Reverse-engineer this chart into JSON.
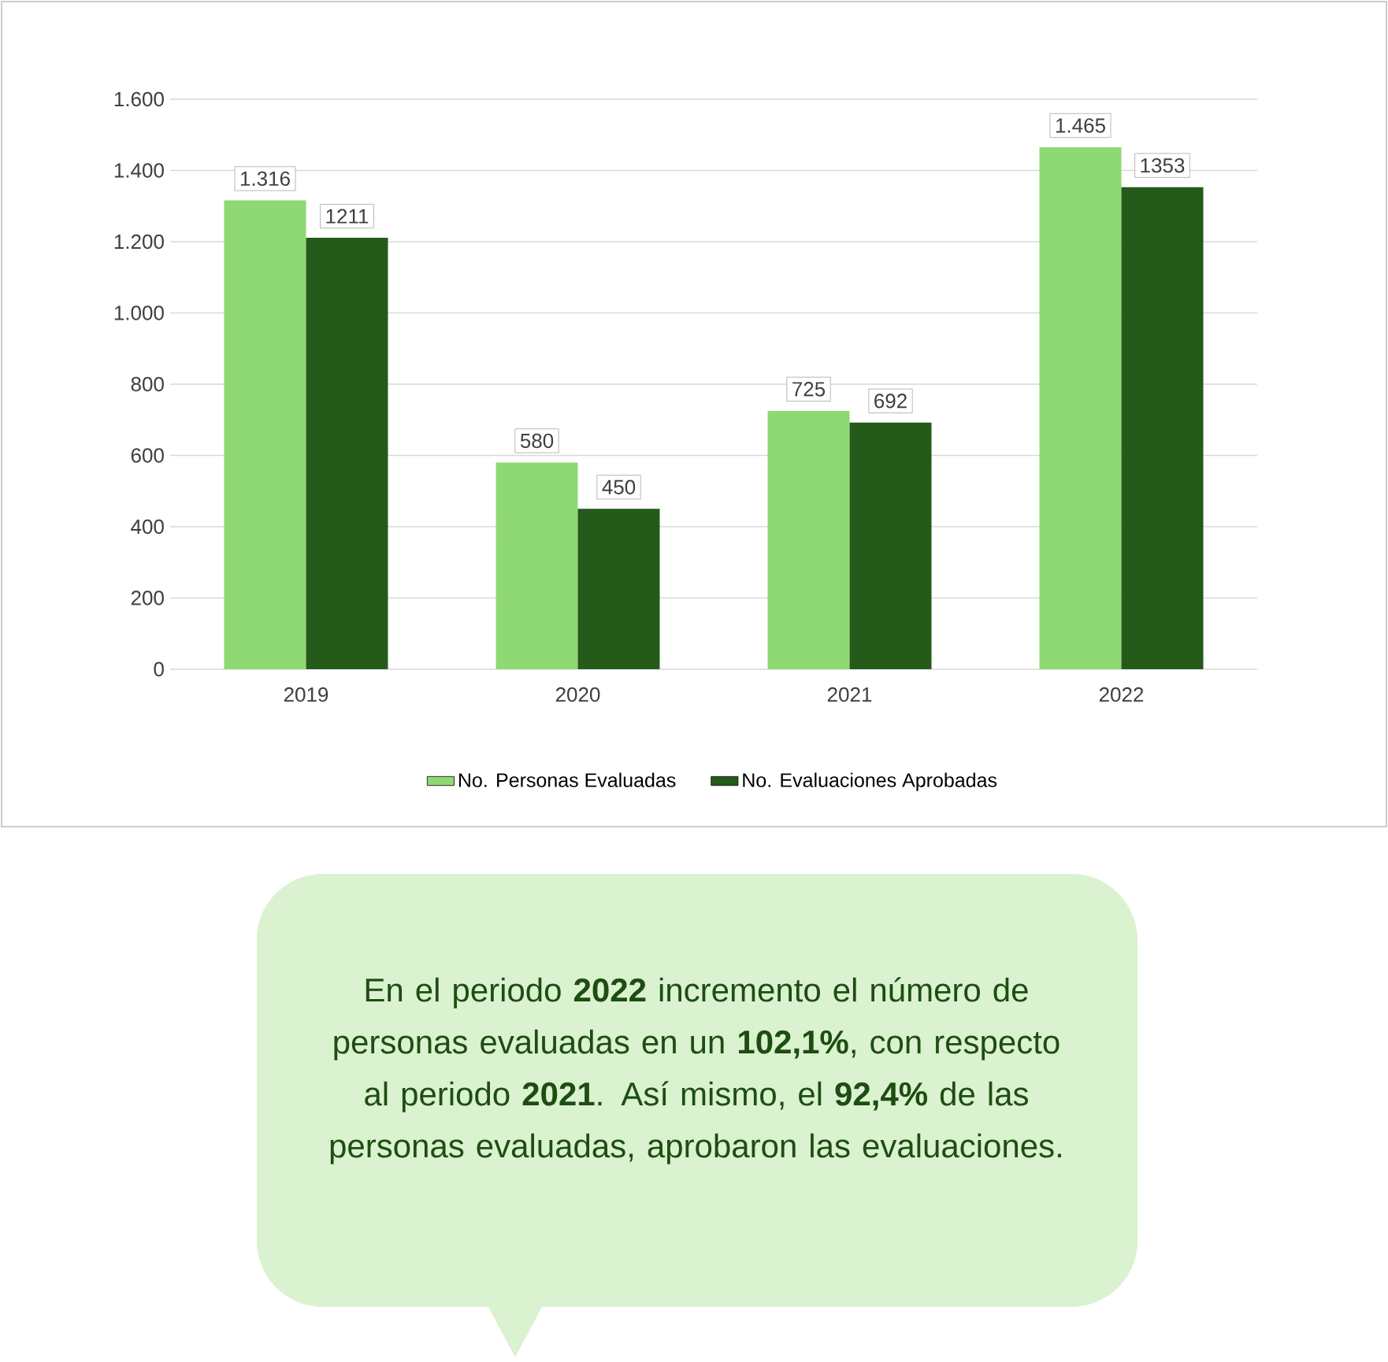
{
  "chart_data": {
    "type": "bar",
    "categories": [
      "2019",
      "2020",
      "2021",
      "2022"
    ],
    "series": [
      {
        "name": "No. Personas Evaluadas",
        "color": "#8ed973",
        "values": [
          1316,
          580,
          725,
          1465
        ],
        "value_labels": [
          "1.316",
          "580",
          "725",
          "1.465"
        ]
      },
      {
        "name": "No. Evaluaciones Aprobadas",
        "color": "#245a1a",
        "values": [
          1211,
          450,
          692,
          1353
        ],
        "value_labels": [
          "1211",
          "450",
          "692",
          "1353"
        ]
      }
    ],
    "ylim": [
      0,
      1600
    ],
    "yticks": [
      0,
      200,
      400,
      600,
      800,
      {
        "value": 1000,
        "label": "1.000"
      },
      {
        "value": 1200,
        "label": "1.200"
      },
      {
        "value": 1400,
        "label": "1.400"
      },
      {
        "value": 1600,
        "label": "1.600"
      }
    ],
    "grid": "y",
    "legend": "bottom",
    "annotations": [
      "En el periodo **2022** incremento el número de personas evaluadas en un **102,1%**, con respecto al periodo **2021**. Así mismo, el **92,4%** de las personas evaluadas, aprobaron las evaluaciones."
    ]
  }
}
